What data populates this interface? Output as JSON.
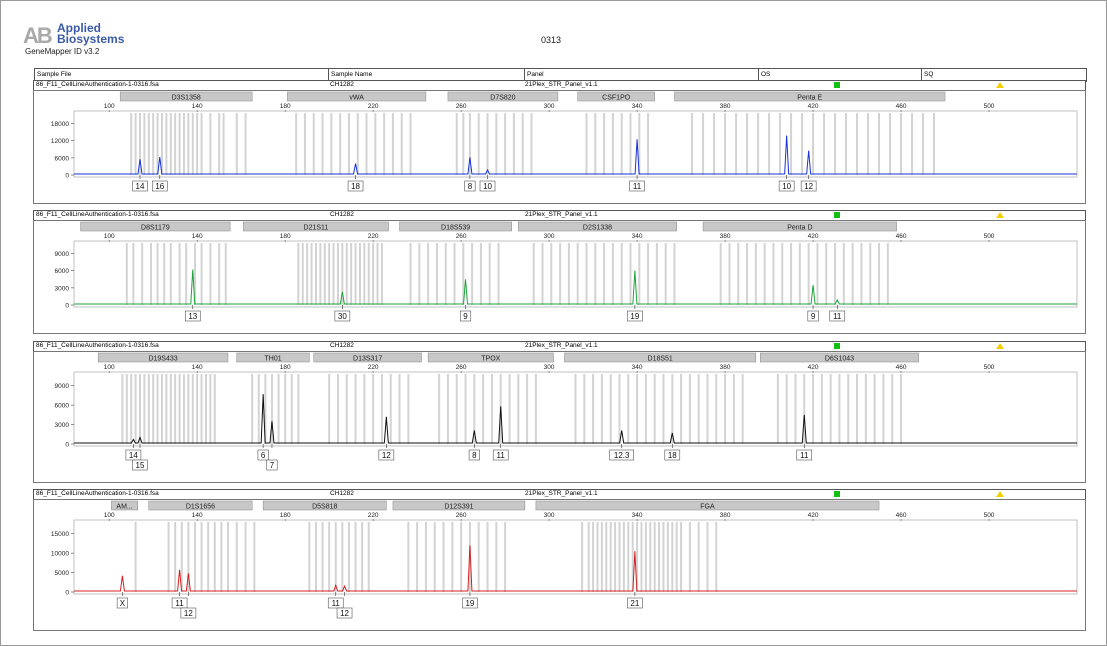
{
  "header": {
    "logo_line1": "Applied",
    "logo_line2": "Biosystems",
    "software": "GeneMapper ID v3.2",
    "title": "0313"
  },
  "columns": {
    "sample_file": "Sample File",
    "sample_name": "Sample Name",
    "panel": "Panel",
    "os": "OS",
    "sq": "SQ"
  },
  "sample": {
    "file": "86_F11_CellLineAuthentication-1-0316.fsa",
    "name": "CH1282",
    "panel": "21Plex_STR_Panel_v1.1"
  },
  "colors": {
    "blue": "#1a33d6",
    "green": "#1ea33a",
    "black": "#111111",
    "red": "#d42020",
    "bin": "#d3d3d3",
    "marker": "#c8c8c8",
    "os_ok": "#11c011",
    "sq_warn": "#f3d000"
  },
  "chart_data": [
    {
      "type": "line",
      "dye": "blue",
      "x_range": [
        84,
        540
      ],
      "x_ticks": [
        100,
        140,
        180,
        220,
        260,
        300,
        340,
        380,
        420,
        460,
        500
      ],
      "y_ticks": [
        0,
        6000,
        12000,
        18000
      ],
      "ylim": [
        0,
        21000
      ],
      "markers": [
        {
          "name": "D3S1358",
          "start": 105,
          "end": 165
        },
        {
          "name": "vWA",
          "start": 181,
          "end": 244
        },
        {
          "name": "D7S820",
          "start": 254,
          "end": 304
        },
        {
          "name": "CSF1PO",
          "start": 313,
          "end": 348
        },
        {
          "name": "Penta E",
          "start": 357,
          "end": 480
        }
      ],
      "peaks": [
        {
          "size": 114,
          "height": 5500,
          "label": "14"
        },
        {
          "size": 123,
          "height": 6300,
          "label": "16"
        },
        {
          "size": 212,
          "height": 4000,
          "label": "18"
        },
        {
          "size": 264,
          "height": 6200,
          "label": "8"
        },
        {
          "size": 272,
          "height": 1800,
          "label": "10"
        },
        {
          "size": 340,
          "height": 12500,
          "label": "11"
        },
        {
          "size": 408,
          "height": 13800,
          "label": "10"
        },
        {
          "size": 418,
          "height": 8500,
          "label": "12"
        }
      ],
      "bins": [
        110,
        112,
        114,
        116,
        118,
        120,
        122,
        124,
        126,
        128,
        130,
        132,
        134,
        136,
        138,
        140,
        142,
        146,
        150,
        152,
        158,
        162,
        185,
        189,
        193,
        197,
        201,
        205,
        209,
        213,
        217,
        221,
        225,
        229,
        233,
        237,
        258,
        261,
        264,
        268,
        272,
        276,
        280,
        284,
        288,
        292,
        317,
        321,
        325,
        329,
        333,
        337,
        341,
        345,
        365,
        370,
        375,
        380,
        385,
        390,
        395,
        400,
        405,
        410,
        415,
        420,
        425,
        430,
        435,
        440,
        445,
        450,
        455,
        460,
        465,
        470,
        475
      ]
    },
    {
      "type": "line",
      "dye": "green",
      "x_range": [
        84,
        540
      ],
      "x_ticks": [
        100,
        140,
        180,
        220,
        260,
        300,
        340,
        380,
        420,
        460,
        500
      ],
      "y_ticks": [
        0,
        3000,
        6000,
        9000
      ],
      "ylim": [
        0,
        10500
      ],
      "markers": [
        {
          "name": "D8S1179",
          "start": 87,
          "end": 155
        },
        {
          "name": "D21S11",
          "start": 161,
          "end": 227
        },
        {
          "name": "D18S539",
          "start": 232,
          "end": 283
        },
        {
          "name": "D2S1338",
          "start": 286,
          "end": 358
        },
        {
          "name": "Penta D",
          "start": 370,
          "end": 458
        }
      ],
      "peaks": [
        {
          "size": 138,
          "height": 6200,
          "label": "13"
        },
        {
          "size": 206,
          "height": 2300,
          "label": "30"
        },
        {
          "size": 262,
          "height": 4500,
          "label": "9"
        },
        {
          "size": 339,
          "height": 6000,
          "label": "19"
        },
        {
          "size": 420,
          "height": 3500,
          "label": "9"
        },
        {
          "size": 431,
          "height": 900,
          "label": "11"
        }
      ],
      "bins": [
        108,
        111,
        115,
        119,
        122,
        125,
        128,
        132,
        135,
        139,
        142,
        146,
        150,
        153,
        186,
        188,
        190,
        192,
        194,
        196,
        198,
        200,
        202,
        204,
        206,
        208,
        210,
        212,
        214,
        216,
        218,
        220,
        222,
        224,
        237,
        241,
        245,
        249,
        253,
        257,
        261,
        265,
        269,
        273,
        277,
        293,
        297,
        301,
        305,
        309,
        313,
        317,
        321,
        325,
        329,
        333,
        337,
        341,
        345,
        349,
        353,
        357,
        378,
        382,
        386,
        390,
        394,
        398,
        402,
        406,
        410,
        414,
        418,
        422,
        426,
        430,
        434,
        438,
        442,
        446,
        450,
        454
      ]
    },
    {
      "type": "line",
      "dye": "black",
      "x_range": [
        84,
        540
      ],
      "x_ticks": [
        100,
        140,
        180,
        220,
        260,
        300,
        340,
        380,
        420,
        460,
        500
      ],
      "y_ticks": [
        0,
        3000,
        6000,
        9000
      ],
      "ylim": [
        0,
        10500
      ],
      "markers": [
        {
          "name": "D19S433",
          "start": 95,
          "end": 154
        },
        {
          "name": "TH01",
          "start": 158,
          "end": 191
        },
        {
          "name": "D13S317",
          "start": 193,
          "end": 242
        },
        {
          "name": "TPOX",
          "start": 245,
          "end": 302
        },
        {
          "name": "D18S51",
          "start": 307,
          "end": 394
        },
        {
          "name": "D6S1043",
          "start": 396,
          "end": 468
        }
      ],
      "peaks": [
        {
          "size": 111,
          "height": 700,
          "label": "14"
        },
        {
          "size": 114,
          "height": 1000,
          "label": "15"
        },
        {
          "size": 170,
          "height": 7700,
          "label": "6"
        },
        {
          "size": 174,
          "height": 3500,
          "label": "7"
        },
        {
          "size": 226,
          "height": 4200,
          "label": "12"
        },
        {
          "size": 266,
          "height": 2100,
          "label": "8"
        },
        {
          "size": 278,
          "height": 5800,
          "label": "11"
        },
        {
          "size": 333,
          "height": 2100,
          "label": "12.3"
        },
        {
          "size": 356,
          "height": 1700,
          "label": "18"
        },
        {
          "size": 416,
          "height": 4500,
          "label": "11"
        }
      ],
      "bins": [
        106,
        108,
        110,
        112,
        114,
        116,
        118,
        120,
        122,
        124,
        126,
        128,
        130,
        132,
        134,
        136,
        138,
        140,
        142,
        144,
        146,
        148,
        165,
        168,
        171,
        174,
        177,
        180,
        183,
        186,
        200,
        204,
        208,
        212,
        216,
        220,
        224,
        228,
        232,
        236,
        250,
        254,
        258,
        262,
        266,
        270,
        274,
        278,
        282,
        286,
        290,
        294,
        312,
        316,
        320,
        324,
        328,
        332,
        336,
        340,
        344,
        348,
        352,
        356,
        360,
        364,
        368,
        372,
        376,
        380,
        384,
        388,
        404,
        408,
        412,
        416,
        420,
        424,
        428,
        432,
        436,
        440,
        444,
        448,
        452,
        456,
        460
      ]
    },
    {
      "type": "line",
      "dye": "red",
      "x_range": [
        84,
        540
      ],
      "x_ticks": [
        100,
        140,
        180,
        220,
        260,
        300,
        340,
        380,
        420,
        460,
        500
      ],
      "y_ticks": [
        0,
        5000,
        10000,
        15000
      ],
      "ylim": [
        0,
        17500
      ],
      "markers": [
        {
          "name": "AM...",
          "start": 101,
          "end": 113
        },
        {
          "name": "D1S1656",
          "start": 118,
          "end": 165
        },
        {
          "name": "D5S818",
          "start": 170,
          "end": 226
        },
        {
          "name": "D12S391",
          "start": 229,
          "end": 289
        },
        {
          "name": "FGA",
          "start": 294,
          "end": 450
        }
      ],
      "peaks": [
        {
          "size": 106,
          "height": 4200,
          "label": "X"
        },
        {
          "size": 132,
          "height": 5700,
          "label": "11"
        },
        {
          "size": 136,
          "height": 4800,
          "label": "12"
        },
        {
          "size": 203,
          "height": 1700,
          "label": "11"
        },
        {
          "size": 207,
          "height": 1500,
          "label": "12"
        },
        {
          "size": 264,
          "height": 12000,
          "label": "19"
        },
        {
          "size": 339,
          "height": 10500,
          "label": "21"
        }
      ],
      "bins": [
        112,
        127,
        130,
        133,
        136,
        139,
        142,
        145,
        148,
        151,
        154,
        158,
        162,
        166,
        191,
        194,
        197,
        200,
        203,
        206,
        209,
        212,
        215,
        218,
        236,
        240,
        244,
        248,
        252,
        256,
        260,
        264,
        268,
        272,
        276,
        280,
        315,
        318,
        320,
        322,
        324,
        326,
        328,
        330,
        332,
        334,
        336,
        338,
        340,
        342,
        344,
        346,
        348,
        350,
        352,
        354,
        356,
        358,
        360,
        364,
        368,
        372,
        376
      ]
    }
  ]
}
